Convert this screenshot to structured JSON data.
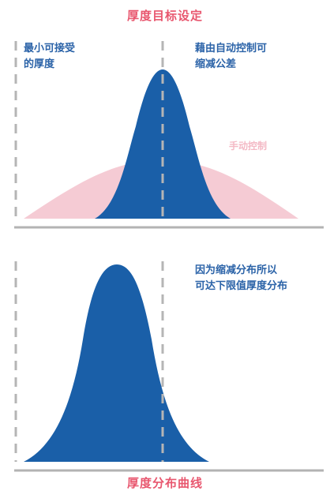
{
  "colors": {
    "accent_pink": "#e8566e",
    "blue_curve": "#1a5fa8",
    "pink_curve": "#f5cbd4",
    "baseline": "#b3b3b3",
    "dash": "#b5b5b5",
    "label_blue": "#2b63a8"
  },
  "top_panel": {
    "title": "厚度目标设定",
    "left_note": [
      "最小可接受",
      "的厚度"
    ],
    "right_note": [
      "藉由自动控制可",
      "缩减公差"
    ],
    "manual_label": "手动控制"
  },
  "bottom_panel": {
    "right_note": [
      "因为缩减分布所以",
      "可达下限值厚度分布"
    ],
    "caption": "厚度分布曲线"
  }
}
